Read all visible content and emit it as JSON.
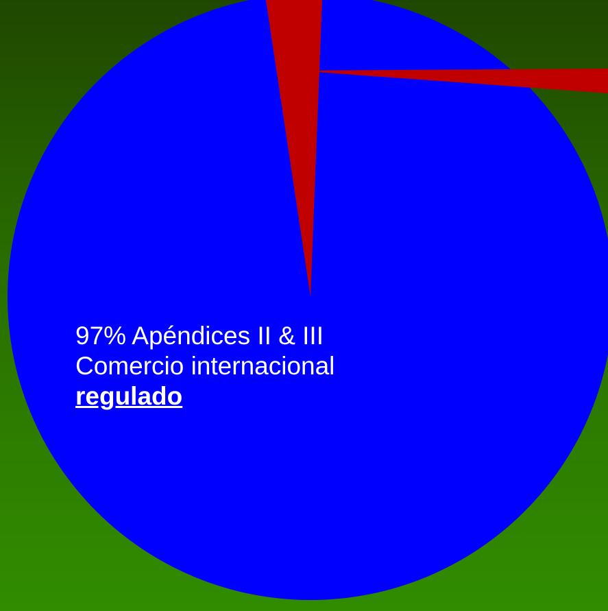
{
  "colors": {
    "background_top": "#1f4700",
    "background_bottom": "#318c00",
    "label_text": "#ffffff"
  },
  "chart_data": {
    "type": "pie",
    "title": "",
    "slices": [
      {
        "value": 97,
        "color": "#0000ff",
        "label": "97% Apéndices II & III"
      },
      {
        "value": 3,
        "color": "#c00000",
        "label": ""
      }
    ],
    "annotation": {
      "line1": "97% Apéndices II & III",
      "line2": "Comercio internacional",
      "line3": "regulado"
    }
  }
}
